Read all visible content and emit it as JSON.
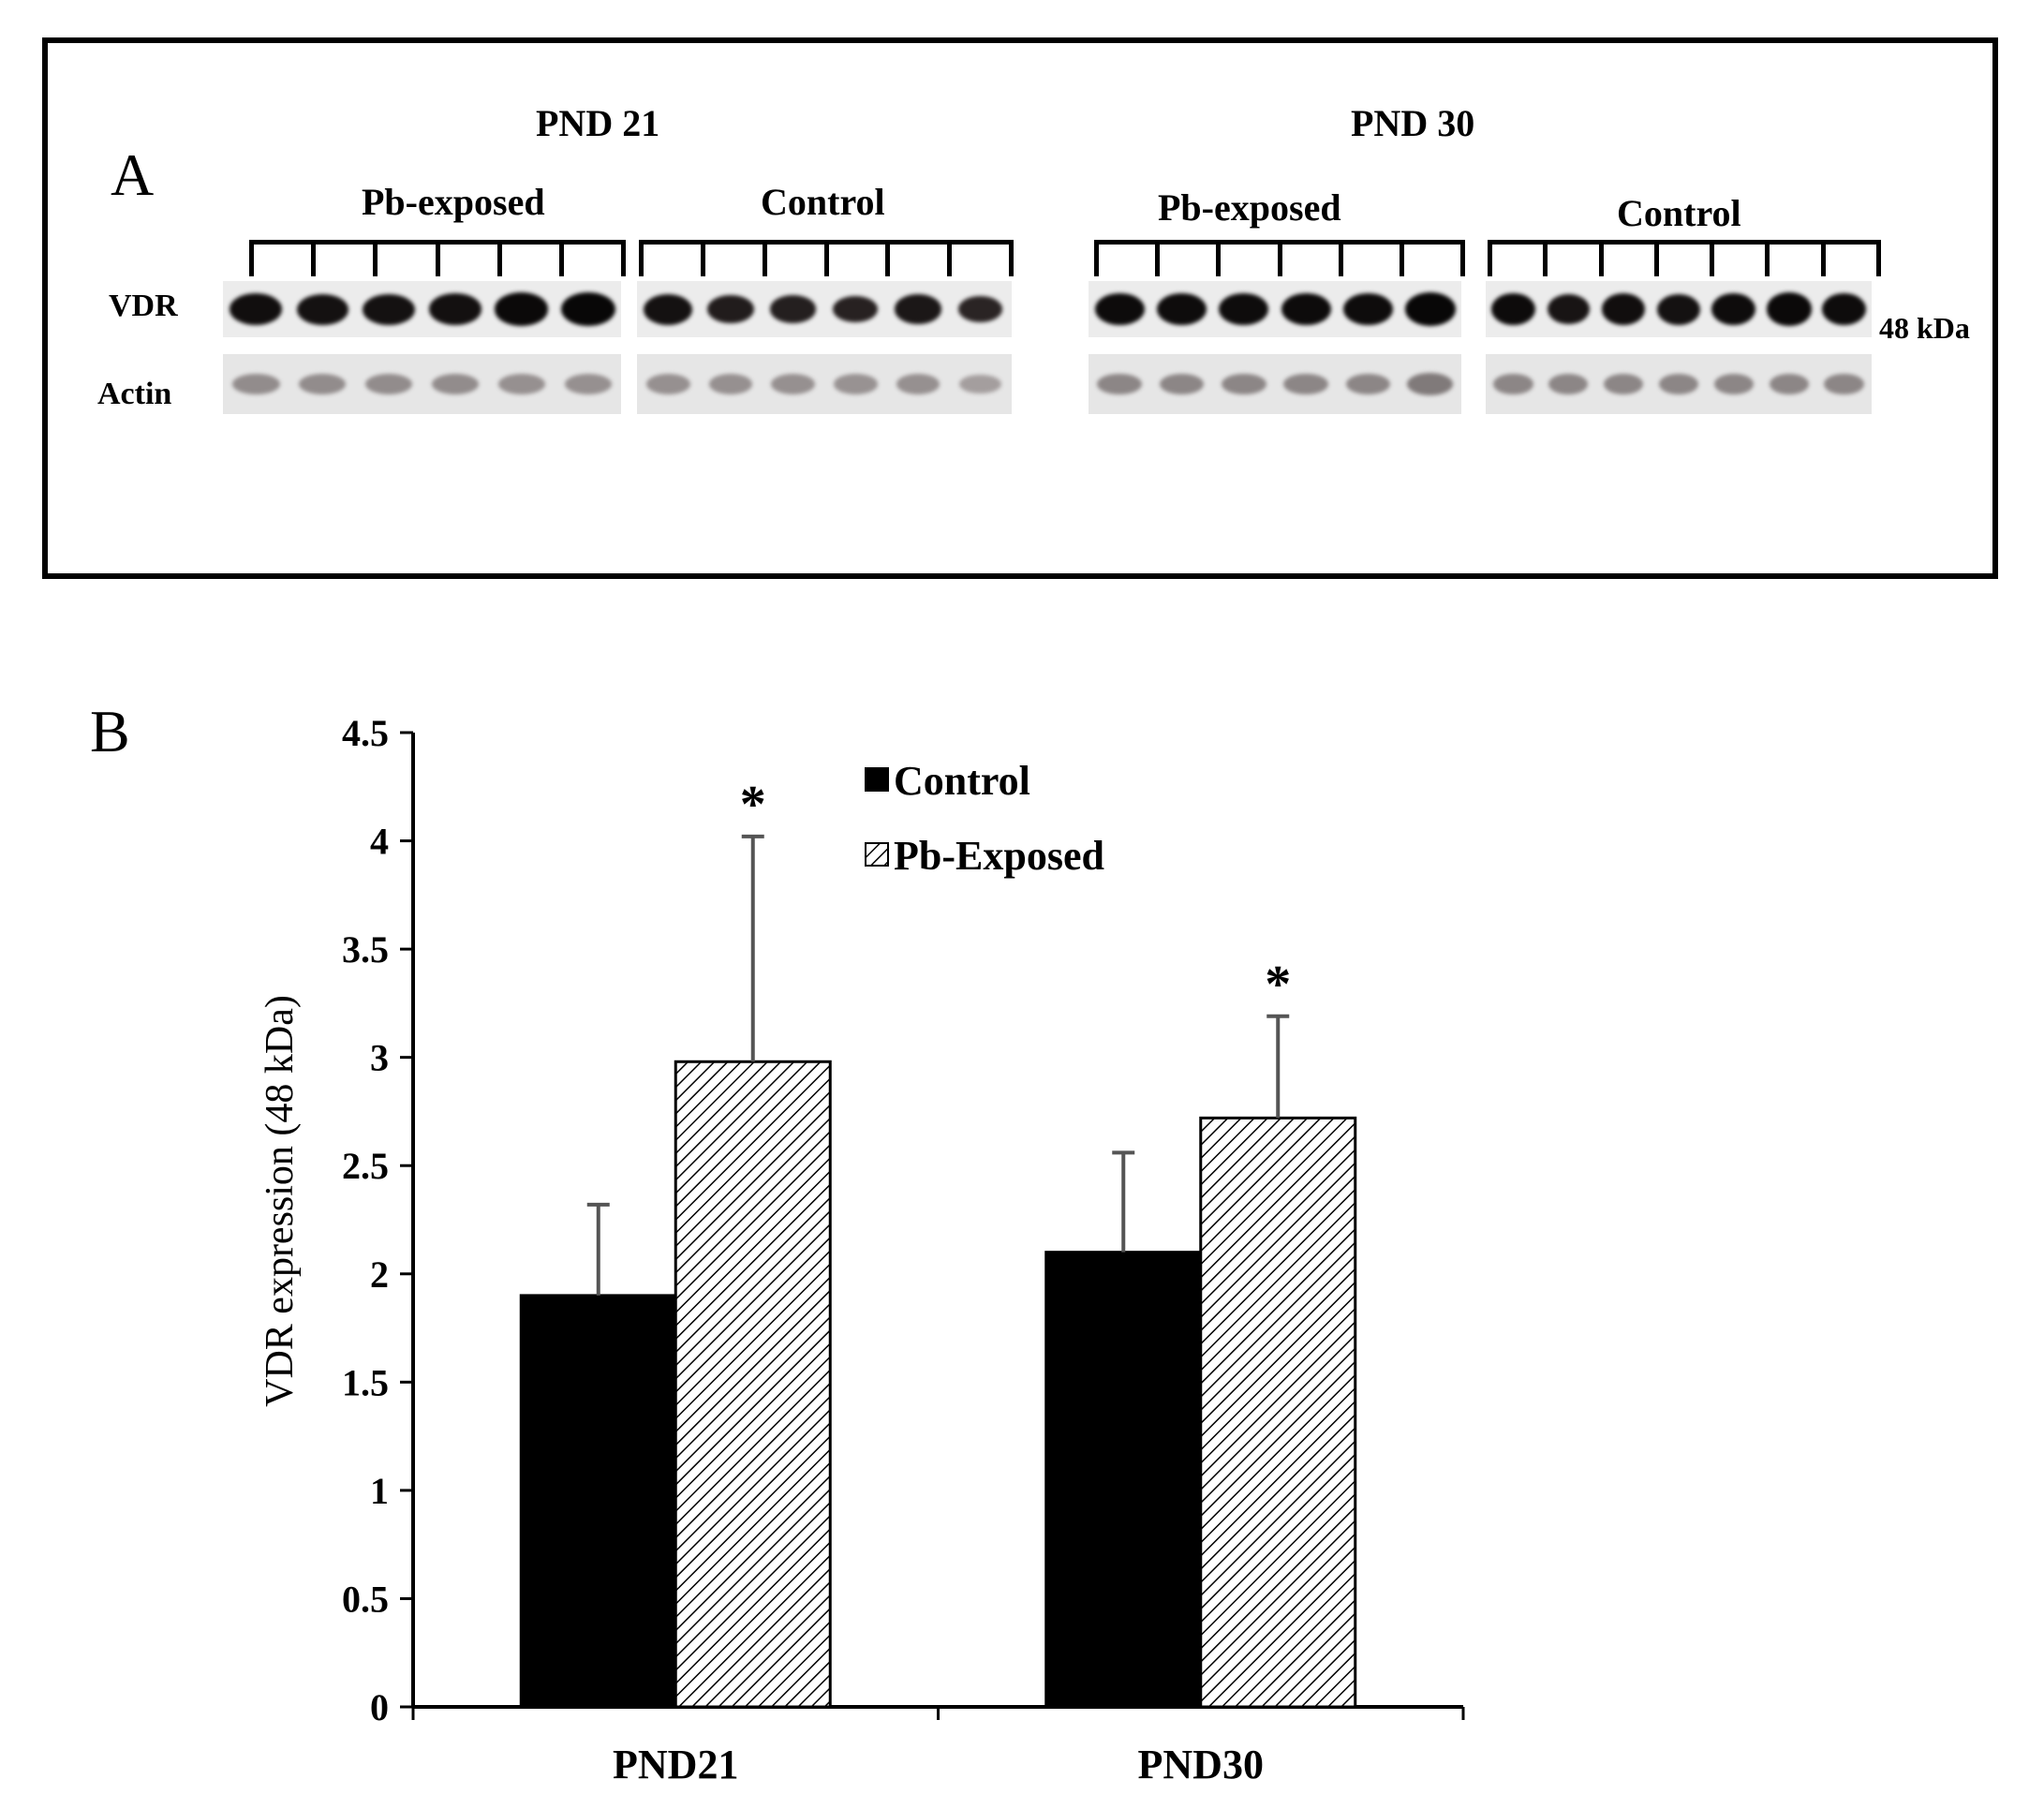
{
  "panel_a": {
    "letter": "A",
    "row_labels": {
      "vdr": "VDR",
      "actin": "Actin"
    },
    "size_marker": "48 kDa",
    "timepoints": [
      {
        "label": "PND 21",
        "groups": [
          {
            "label": "Pb-exposed",
            "vdr_band_intensity": [
              0.85,
              0.8,
              0.8,
              0.82,
              0.95,
              1.0
            ],
            "actin_band_intensity": [
              0.45,
              0.45,
              0.45,
              0.45,
              0.42,
              0.42
            ]
          },
          {
            "label": "Control",
            "vdr_band_intensity": [
              0.8,
              0.6,
              0.55,
              0.5,
              0.7,
              0.45
            ],
            "actin_band_intensity": [
              0.42,
              0.42,
              0.42,
              0.4,
              0.42,
              0.3
            ]
          }
        ]
      },
      {
        "label": "PND 30",
        "groups": [
          {
            "label": "Pb-exposed",
            "vdr_band_intensity": [
              0.92,
              0.9,
              0.9,
              0.92,
              0.9,
              1.0
            ],
            "actin_band_intensity": [
              0.5,
              0.5,
              0.5,
              0.5,
              0.5,
              0.6
            ]
          },
          {
            "label": "Control",
            "vdr_band_intensity": [
              0.92,
              0.75,
              0.85,
              0.8,
              0.9,
              0.95,
              0.9
            ],
            "actin_band_intensity": [
              0.5,
              0.5,
              0.5,
              0.5,
              0.5,
              0.5,
              0.5
            ]
          }
        ]
      }
    ]
  },
  "panel_b": {
    "letter": "B"
  },
  "chart_data": {
    "type": "bar",
    "categories": [
      "PND21",
      "PND30"
    ],
    "series": [
      {
        "name": "Control",
        "values": [
          1.9,
          2.1
        ],
        "error": [
          0.42,
          0.46
        ],
        "fill": "solid",
        "color": "#000000"
      },
      {
        "name": "Pb-Exposed",
        "values": [
          2.98,
          2.72
        ],
        "error": [
          1.04,
          0.47
        ],
        "fill": "diagonal-hatch",
        "color": "#000000"
      }
    ],
    "significance": [
      {
        "category": "PND21",
        "series": "Pb-Exposed",
        "mark": "*"
      },
      {
        "category": "PND30",
        "series": "Pb-Exposed",
        "mark": "*"
      }
    ],
    "ylabel": "VDR expression  (48 kDa)",
    "xlabel": "",
    "ylim": [
      0,
      4.5
    ],
    "yticks": [
      "0",
      "0.5",
      "1",
      "1.5",
      "2",
      "2.5",
      "3",
      "3.5",
      "4",
      "4.5"
    ],
    "grid": false,
    "legend_position": "top-center"
  }
}
